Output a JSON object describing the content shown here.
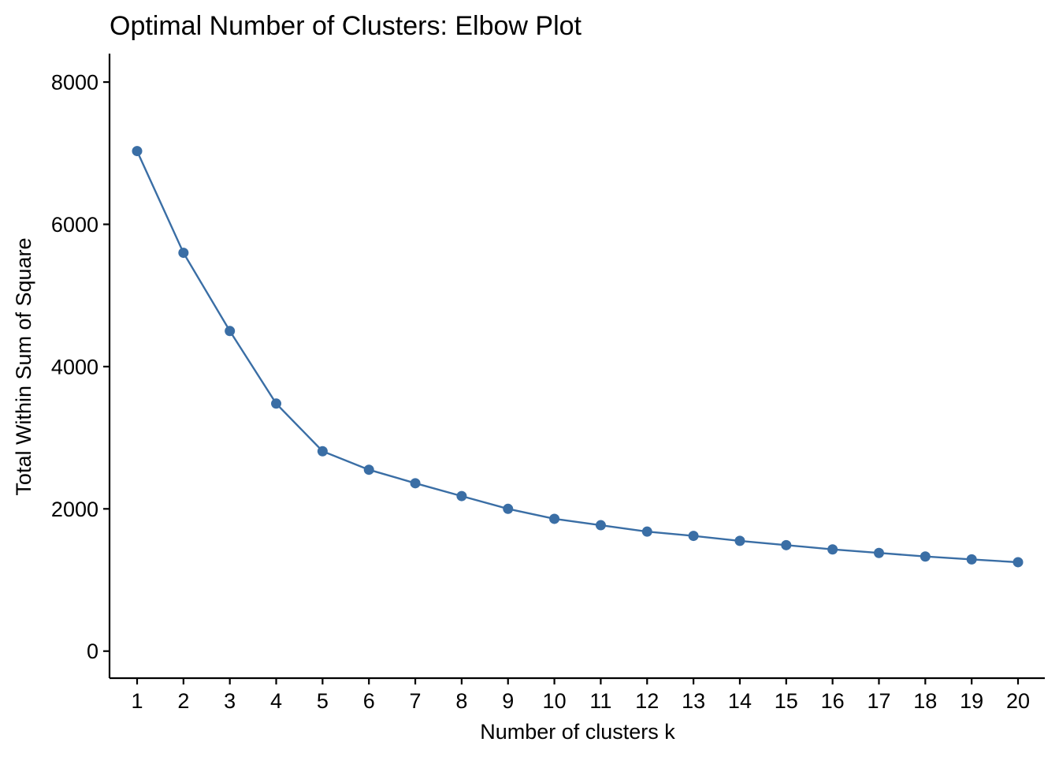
{
  "chart_data": {
    "type": "line",
    "title": "Optimal Number of Clusters: Elbow Plot",
    "xlabel": "Number of clusters k",
    "ylabel": "Total Within Sum of Square",
    "categories": [
      "1",
      "2",
      "3",
      "4",
      "5",
      "6",
      "7",
      "8",
      "9",
      "10",
      "11",
      "12",
      "13",
      "14",
      "15",
      "16",
      "17",
      "18",
      "19",
      "20"
    ],
    "series": [
      {
        "values": [
          7030,
          5600,
          4500,
          3480,
          2810,
          2550,
          2360,
          2180,
          2000,
          1860,
          1770,
          1680,
          1620,
          1550,
          1490,
          1430,
          1380,
          1330,
          1290,
          1250
        ]
      }
    ],
    "yticks": [
      0,
      2000,
      4000,
      6000,
      8000
    ],
    "ylim": [
      -380,
      8400
    ],
    "grid": false,
    "legend": "none",
    "color": "#3A6EA5"
  }
}
